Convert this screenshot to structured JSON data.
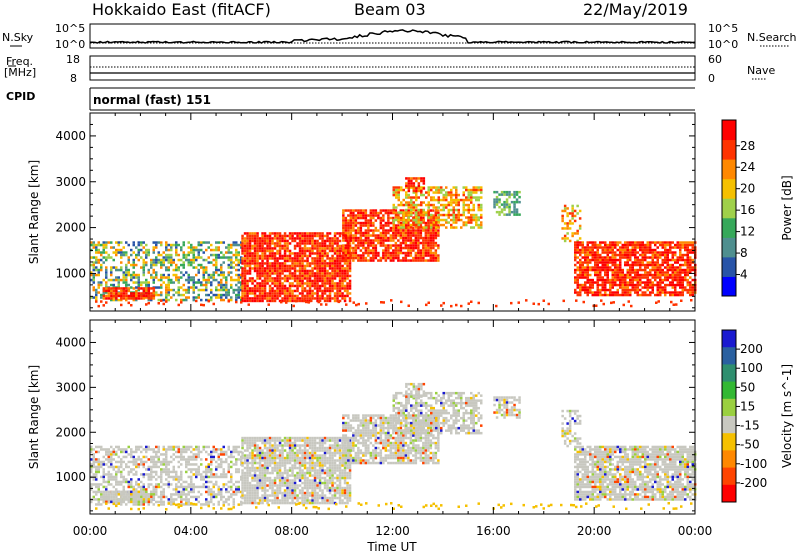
{
  "header": {
    "title": "Hokkaido East (fitACF)",
    "beam": "Beam 03",
    "date": "22/May/2019"
  },
  "top_panels": {
    "nsky_label": "N.Sky",
    "nsky_ticks": [
      "10^5",
      "10^0"
    ],
    "nsearch_label": "N.Search",
    "nsearch_ticks": [
      "10^5",
      "10^0"
    ],
    "freq_label_1": "Freq.",
    "freq_label_2": "[MHz]",
    "freq_ticks": [
      "18",
      "8"
    ],
    "nave_label": "Nave",
    "nave_ticks": [
      "60",
      "0"
    ],
    "cpid_label": "CPID",
    "cpid_text": "normal (fast) 151"
  },
  "chart_data": [
    {
      "type": "heatmap",
      "name": "power",
      "ylabel": "Slant Range [km]",
      "yticks": [
        "1000",
        "2000",
        "3000",
        "4000"
      ],
      "colorbar_label": "Power [dB]",
      "colorbar_ticks": [
        "4",
        "8",
        "12",
        "16",
        "20",
        "24",
        "28"
      ],
      "colors": [
        "#0000ff",
        "#2854a8",
        "#4f8f8f",
        "#36a85a",
        "#9fd04a",
        "#f5c000",
        "#ff8800",
        "#ff3300",
        "#ff0000"
      ]
    },
    {
      "type": "heatmap",
      "name": "velocity",
      "ylabel": "Slant Range [km]",
      "yticks": [
        "1000",
        "2000",
        "3000",
        "4000"
      ],
      "colorbar_label": "Velocity [m s^-1]",
      "colorbar_ticks": [
        "200",
        "100",
        "50",
        "15",
        "-15",
        "-50",
        "-100",
        "-200"
      ],
      "colors": [
        "#1a1ad0",
        "#2a60a0",
        "#2f8f6f",
        "#33b833",
        "#9ad040",
        "#c8c8c0",
        "#f5c000",
        "#ff8800",
        "#ff4400",
        "#ff0000"
      ],
      "xlabel": "Time UT",
      "xticks": [
        "00:00",
        "04:00",
        "08:00",
        "12:00",
        "16:00",
        "20:00",
        "00:00"
      ]
    }
  ]
}
